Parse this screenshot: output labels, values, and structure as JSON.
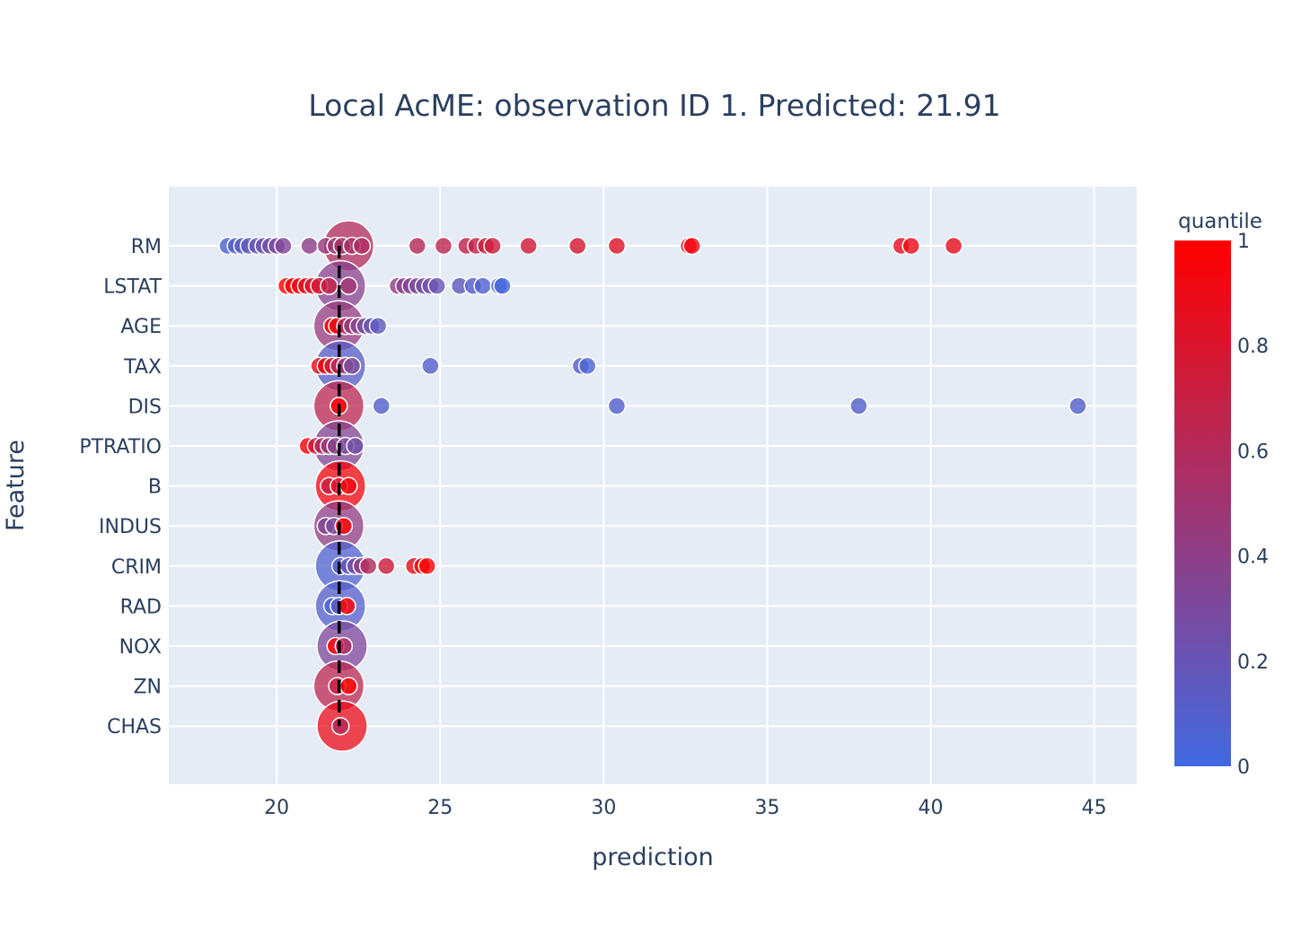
{
  "chart_data": {
    "type": "scatter",
    "title": "Local AcME: observation ID 1. Predicted: 21.91",
    "xlabel": "prediction",
    "ylabel": "Feature",
    "xlim": [
      16.7,
      46.3
    ],
    "x_ticks": [
      20,
      25,
      30,
      35,
      40,
      45
    ],
    "features": [
      "RM",
      "LSTAT",
      "AGE",
      "TAX",
      "DIS",
      "PTRATIO",
      "B",
      "INDUS",
      "CRIM",
      "RAD",
      "NOX",
      "ZN",
      "CHAS"
    ],
    "predicted_value": 21.91,
    "colorbar": {
      "title": "quantile",
      "range": [
        0,
        1
      ],
      "ticks": [
        0,
        0.2,
        0.4,
        0.6,
        0.8,
        1
      ],
      "colors": [
        "#4169E1",
        "#FF0000"
      ]
    },
    "grid": true,
    "observation_markers": [
      {
        "feature": "RM",
        "x": 22.2,
        "quantile": 0.6
      },
      {
        "feature": "LSTAT",
        "x": 21.95,
        "quantile": 0.38
      },
      {
        "feature": "AGE",
        "x": 21.9,
        "quantile": 0.45
      },
      {
        "feature": "TAX",
        "x": 21.95,
        "quantile": 0.12
      },
      {
        "feature": "DIS",
        "x": 21.9,
        "quantile": 0.65
      },
      {
        "feature": "PTRATIO",
        "x": 21.9,
        "quantile": 0.35
      },
      {
        "feature": "B",
        "x": 21.95,
        "quantile": 0.95
      },
      {
        "feature": "INDUS",
        "x": 21.9,
        "quantile": 0.42
      },
      {
        "feature": "CRIM",
        "x": 21.95,
        "quantile": 0.08
      },
      {
        "feature": "RAD",
        "x": 21.95,
        "quantile": 0.1
      },
      {
        "feature": "NOX",
        "x": 22.0,
        "quantile": 0.32
      },
      {
        "feature": "ZN",
        "x": 21.9,
        "quantile": 0.65
      },
      {
        "feature": "CHAS",
        "x": 22.0,
        "quantile": 0.9
      }
    ],
    "points": [
      {
        "feature": "RM",
        "x": 18.5,
        "quantile": 0.05
      },
      {
        "feature": "RM",
        "x": 18.75,
        "quantile": 0.1
      },
      {
        "feature": "RM",
        "x": 18.95,
        "quantile": 0.12
      },
      {
        "feature": "RM",
        "x": 19.15,
        "quantile": 0.15
      },
      {
        "feature": "RM",
        "x": 19.4,
        "quantile": 0.18
      },
      {
        "feature": "RM",
        "x": 19.6,
        "quantile": 0.22
      },
      {
        "feature": "RM",
        "x": 19.8,
        "quantile": 0.26
      },
      {
        "feature": "RM",
        "x": 20.0,
        "quantile": 0.3
      },
      {
        "feature": "RM",
        "x": 20.2,
        "quantile": 0.33
      },
      {
        "feature": "RM",
        "x": 21.0,
        "quantile": 0.4
      },
      {
        "feature": "RM",
        "x": 21.5,
        "quantile": 0.45
      },
      {
        "feature": "RM",
        "x": 21.8,
        "quantile": 0.5
      },
      {
        "feature": "RM",
        "x": 22.0,
        "quantile": 0.52
      },
      {
        "feature": "RM",
        "x": 22.3,
        "quantile": 0.55
      },
      {
        "feature": "RM",
        "x": 22.6,
        "quantile": 0.58
      },
      {
        "feature": "RM",
        "x": 24.3,
        "quantile": 0.62
      },
      {
        "feature": "RM",
        "x": 25.1,
        "quantile": 0.65
      },
      {
        "feature": "RM",
        "x": 25.8,
        "quantile": 0.68
      },
      {
        "feature": "RM",
        "x": 26.1,
        "quantile": 0.7
      },
      {
        "feature": "RM",
        "x": 26.4,
        "quantile": 0.72
      },
      {
        "feature": "RM",
        "x": 26.6,
        "quantile": 0.74
      },
      {
        "feature": "RM",
        "x": 27.7,
        "quantile": 0.77
      },
      {
        "feature": "RM",
        "x": 29.2,
        "quantile": 0.8
      },
      {
        "feature": "RM",
        "x": 30.4,
        "quantile": 0.83
      },
      {
        "feature": "RM",
        "x": 32.6,
        "quantile": 0.88
      },
      {
        "feature": "RM",
        "x": 32.7,
        "quantile": 0.92
      },
      {
        "feature": "RM",
        "x": 39.1,
        "quantile": 0.85
      },
      {
        "feature": "RM",
        "x": 39.4,
        "quantile": 0.9
      },
      {
        "feature": "RM",
        "x": 40.7,
        "quantile": 0.88
      },
      {
        "feature": "LSTAT",
        "x": 20.3,
        "quantile": 1.0
      },
      {
        "feature": "LSTAT",
        "x": 20.5,
        "quantile": 0.95
      },
      {
        "feature": "LSTAT",
        "x": 20.7,
        "quantile": 0.9
      },
      {
        "feature": "LSTAT",
        "x": 20.9,
        "quantile": 0.86
      },
      {
        "feature": "LSTAT",
        "x": 21.1,
        "quantile": 0.82
      },
      {
        "feature": "LSTAT",
        "x": 21.3,
        "quantile": 0.78
      },
      {
        "feature": "LSTAT",
        "x": 21.6,
        "quantile": 0.7
      },
      {
        "feature": "LSTAT",
        "x": 22.2,
        "quantile": 0.5
      },
      {
        "feature": "LSTAT",
        "x": 23.7,
        "quantile": 0.42
      },
      {
        "feature": "LSTAT",
        "x": 23.9,
        "quantile": 0.38
      },
      {
        "feature": "LSTAT",
        "x": 24.1,
        "quantile": 0.35
      },
      {
        "feature": "LSTAT",
        "x": 24.3,
        "quantile": 0.3
      },
      {
        "feature": "LSTAT",
        "x": 24.5,
        "quantile": 0.27
      },
      {
        "feature": "LSTAT",
        "x": 24.7,
        "quantile": 0.24
      },
      {
        "feature": "LSTAT",
        "x": 24.9,
        "quantile": 0.2
      },
      {
        "feature": "LSTAT",
        "x": 25.6,
        "quantile": 0.15
      },
      {
        "feature": "LSTAT",
        "x": 26.0,
        "quantile": 0.12
      },
      {
        "feature": "LSTAT",
        "x": 26.3,
        "quantile": 0.08
      },
      {
        "feature": "LSTAT",
        "x": 26.8,
        "quantile": 0.05
      },
      {
        "feature": "LSTAT",
        "x": 26.9,
        "quantile": 0.02
      },
      {
        "feature": "AGE",
        "x": 21.7,
        "quantile": 1.0
      },
      {
        "feature": "AGE",
        "x": 21.85,
        "quantile": 0.9
      },
      {
        "feature": "AGE",
        "x": 22.1,
        "quantile": 0.6
      },
      {
        "feature": "AGE",
        "x": 22.3,
        "quantile": 0.45
      },
      {
        "feature": "AGE",
        "x": 22.5,
        "quantile": 0.35
      },
      {
        "feature": "AGE",
        "x": 22.7,
        "quantile": 0.28
      },
      {
        "feature": "AGE",
        "x": 22.9,
        "quantile": 0.2
      },
      {
        "feature": "AGE",
        "x": 23.1,
        "quantile": 0.15
      },
      {
        "feature": "TAX",
        "x": 21.3,
        "quantile": 0.9
      },
      {
        "feature": "TAX",
        "x": 21.5,
        "quantile": 0.95
      },
      {
        "feature": "TAX",
        "x": 21.7,
        "quantile": 0.8
      },
      {
        "feature": "TAX",
        "x": 21.9,
        "quantile": 0.6
      },
      {
        "feature": "TAX",
        "x": 22.1,
        "quantile": 0.45
      },
      {
        "feature": "TAX",
        "x": 22.3,
        "quantile": 0.3
      },
      {
        "feature": "TAX",
        "x": 24.7,
        "quantile": 0.1
      },
      {
        "feature": "TAX",
        "x": 29.3,
        "quantile": 0.1
      },
      {
        "feature": "TAX",
        "x": 29.5,
        "quantile": 0.05
      },
      {
        "feature": "DIS",
        "x": 21.9,
        "quantile": 1.0
      },
      {
        "feature": "DIS",
        "x": 23.2,
        "quantile": 0.1
      },
      {
        "feature": "DIS",
        "x": 30.4,
        "quantile": 0.1
      },
      {
        "feature": "DIS",
        "x": 37.8,
        "quantile": 0.1
      },
      {
        "feature": "DIS",
        "x": 44.5,
        "quantile": 0.1
      },
      {
        "feature": "PTRATIO",
        "x": 20.95,
        "quantile": 1.0
      },
      {
        "feature": "PTRATIO",
        "x": 21.2,
        "quantile": 0.75
      },
      {
        "feature": "PTRATIO",
        "x": 21.4,
        "quantile": 0.6
      },
      {
        "feature": "PTRATIO",
        "x": 21.6,
        "quantile": 0.45
      },
      {
        "feature": "PTRATIO",
        "x": 21.8,
        "quantile": 0.38
      },
      {
        "feature": "PTRATIO",
        "x": 22.1,
        "quantile": 0.3
      },
      {
        "feature": "PTRATIO",
        "x": 22.4,
        "quantile": 0.25
      },
      {
        "feature": "B",
        "x": 21.6,
        "quantile": 0.7
      },
      {
        "feature": "B",
        "x": 21.9,
        "quantile": 0.8
      },
      {
        "feature": "B",
        "x": 22.2,
        "quantile": 0.95
      },
      {
        "feature": "INDUS",
        "x": 21.5,
        "quantile": 0.35
      },
      {
        "feature": "INDUS",
        "x": 21.75,
        "quantile": 0.3
      },
      {
        "feature": "INDUS",
        "x": 22.05,
        "quantile": 1.0
      },
      {
        "feature": "CRIM",
        "x": 21.95,
        "quantile": 0.1
      },
      {
        "feature": "CRIM",
        "x": 22.2,
        "quantile": 0.18
      },
      {
        "feature": "CRIM",
        "x": 22.4,
        "quantile": 0.28
      },
      {
        "feature": "CRIM",
        "x": 22.6,
        "quantile": 0.4
      },
      {
        "feature": "CRIM",
        "x": 22.8,
        "quantile": 0.6
      },
      {
        "feature": "CRIM",
        "x": 23.35,
        "quantile": 0.75
      },
      {
        "feature": "CRIM",
        "x": 24.2,
        "quantile": 0.88
      },
      {
        "feature": "CRIM",
        "x": 24.45,
        "quantile": 0.95
      },
      {
        "feature": "CRIM",
        "x": 24.6,
        "quantile": 0.98
      },
      {
        "feature": "RAD",
        "x": 21.7,
        "quantile": 0.05
      },
      {
        "feature": "RAD",
        "x": 21.9,
        "quantile": 0.15
      },
      {
        "feature": "RAD",
        "x": 22.15,
        "quantile": 1.0
      },
      {
        "feature": "NOX",
        "x": 21.8,
        "quantile": 1.0
      },
      {
        "feature": "NOX",
        "x": 22.05,
        "quantile": 0.6
      },
      {
        "feature": "ZN",
        "x": 21.85,
        "quantile": 0.7
      },
      {
        "feature": "ZN",
        "x": 22.2,
        "quantile": 1.0
      },
      {
        "feature": "CHAS",
        "x": 21.95,
        "quantile": 0.6
      }
    ]
  }
}
